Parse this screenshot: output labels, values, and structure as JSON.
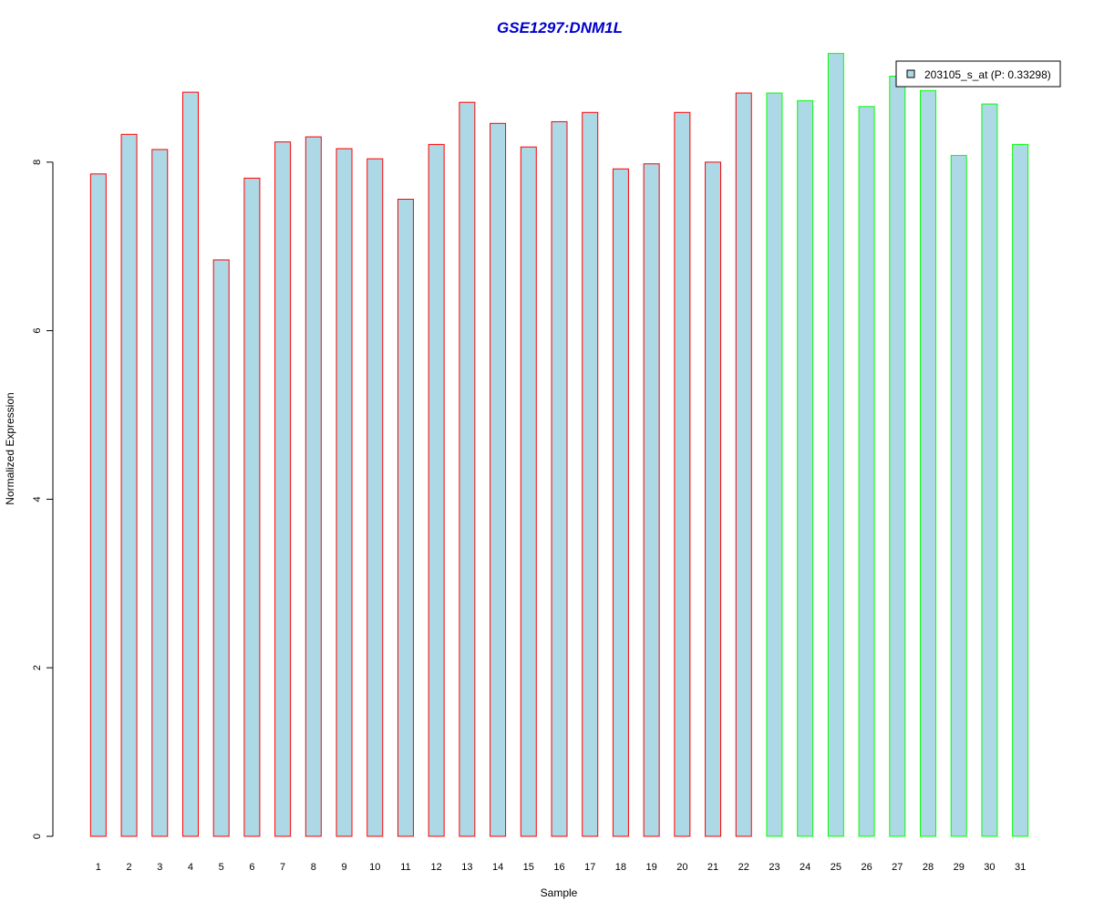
{
  "chart_data": {
    "type": "bar",
    "title": "GSE1297:DNM1L",
    "xlabel": "Sample",
    "ylabel": "Normalized Expression",
    "ylim": [
      0,
      9.3
    ],
    "yticks": [
      "0",
      "2",
      "4",
      "6",
      "8"
    ],
    "categories": [
      "1",
      "2",
      "3",
      "4",
      "5",
      "6",
      "7",
      "8",
      "9",
      "10",
      "11",
      "12",
      "13",
      "14",
      "15",
      "16",
      "17",
      "18",
      "19",
      "20",
      "21",
      "22",
      "23",
      "24",
      "25",
      "26",
      "27",
      "28",
      "29",
      "30",
      "31"
    ],
    "series": [
      {
        "name": "203105_s_at (P: 0.33298)",
        "values": [
          7.86,
          8.33,
          8.15,
          8.83,
          6.84,
          7.81,
          8.24,
          8.3,
          8.16,
          8.04,
          7.56,
          8.21,
          8.71,
          8.46,
          8.18,
          8.48,
          8.59,
          7.92,
          7.98,
          8.59,
          8.0,
          8.82,
          8.82,
          8.73,
          9.29,
          8.66,
          9.02,
          8.85,
          8.08,
          8.69,
          8.21
        ]
      }
    ],
    "groups": [
      "red",
      "red",
      "red",
      "red",
      "red",
      "red",
      "red",
      "red",
      "red",
      "red",
      "red",
      "red",
      "red",
      "red",
      "red",
      "red",
      "red",
      "red",
      "red",
      "red",
      "red",
      "red",
      "green",
      "green",
      "green",
      "green",
      "green",
      "green",
      "green",
      "green",
      "green"
    ],
    "legend": {
      "position": "top-right",
      "label": "203105_s_at (P: 0.33298)"
    },
    "grid": false
  },
  "colors": {
    "title": "#0000cc",
    "bar_fill": "#add8e6",
    "red_border": "#ff0000",
    "green_border": "#00ff00",
    "axis": "#000000"
  }
}
